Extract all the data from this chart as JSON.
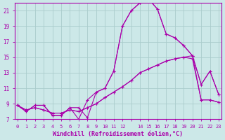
{
  "xlabel": "Windchill (Refroidissement éolien,°C)",
  "background_color": "#cce8e8",
  "grid_color": "#aacccc",
  "line_color": "#aa00aa",
  "xlim": [
    0,
    23
  ],
  "ylim": [
    7,
    22
  ],
  "yticks": [
    7,
    9,
    11,
    13,
    15,
    17,
    19,
    21
  ],
  "xticks": [
    0,
    1,
    2,
    3,
    4,
    5,
    6,
    7,
    8,
    9,
    10,
    11,
    12,
    13,
    14,
    15,
    16,
    17,
    18,
    19,
    20,
    21,
    22,
    23
  ],
  "xtick_labels": [
    "0",
    "1",
    "2",
    "3",
    "4",
    "5",
    "6",
    "7",
    "8",
    "9",
    "10",
    "11",
    "12",
    "",
    "14",
    "15",
    "16",
    "17",
    "18",
    "19",
    "20",
    "21",
    "22",
    "23"
  ],
  "series": [
    [
      8.8,
      8.0,
      8.8,
      8.8,
      7.5,
      7.5,
      8.5,
      8.5,
      7.2,
      10.5,
      11.0,
      13.2,
      19.0,
      21.0,
      22.0,
      22.5,
      21.2,
      18.0,
      17.5,
      16.5,
      15.2,
      11.5,
      13.2,
      10.2
    ],
    [
      8.8,
      8.0,
      8.8,
      8.8,
      7.5,
      7.5,
      8.5,
      7.0,
      9.5,
      10.5,
      11.0,
      13.2,
      19.0,
      21.0,
      22.0,
      22.5,
      21.2,
      18.0,
      17.5,
      16.5,
      15.2,
      11.5,
      13.2,
      10.2
    ],
    [
      8.8,
      8.2,
      8.5,
      8.2,
      7.8,
      7.8,
      8.2,
      8.0,
      8.5,
      9.0,
      9.8,
      10.5,
      11.2,
      12.0,
      13.0,
      13.5,
      14.0,
      14.5,
      14.8,
      15.0,
      14.8,
      9.5,
      9.5,
      9.2
    ],
    [
      8.8,
      8.2,
      8.5,
      8.2,
      7.8,
      7.8,
      8.2,
      8.0,
      8.5,
      9.0,
      9.8,
      10.5,
      11.2,
      12.0,
      13.0,
      13.5,
      14.0,
      14.5,
      14.8,
      15.0,
      15.2,
      9.5,
      9.5,
      9.2
    ]
  ]
}
